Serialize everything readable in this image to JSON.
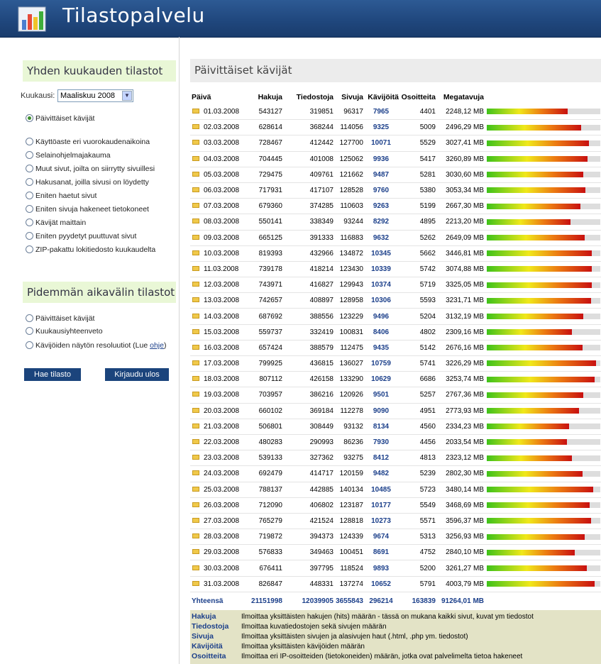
{
  "app": {
    "title": "Tilastopalvelu"
  },
  "sidebar": {
    "monthly_title": "Yhden kuukauden tilastot",
    "month_label": "Kuukausi:",
    "month_value": "Maaliskuu 2008",
    "monthly_options": [
      "Päivittäiset kävijät",
      "Käyttöaste eri vuorokaudenaikoina",
      "Selainohjelmajakauma",
      "Muut sivut, joilta on siirrytty sivuillesi",
      "Hakusanat, joilla sivusi on löydetty",
      "Eniten haetut sivut",
      "Eniten sivuja hakeneet tietokoneet",
      "Kävijät maittain",
      "Eniten pyydetyt puuttuvat sivut",
      "ZIP-pakattu lokitiedosto kuukaudelta"
    ],
    "longterm_title": "Pidemmän aikavälin tilastot",
    "longterm_options": [
      "Päivittäiset kävijät",
      "Kuukausiyhteenveto",
      "Kävijöiden näytön resoluutiot (Lue "
    ],
    "help_link": "ohje",
    "help_close": ")",
    "fetch_button": "Hae tilasto",
    "logout_button": "Kirjaudu ulos"
  },
  "main": {
    "title": "Päivittäiset kävijät",
    "columns": [
      "Päivä",
      "Hakuja",
      "Tiedostoja",
      "Sivuja",
      "Kävijöitä",
      "Osoitteita",
      "Megatavuja"
    ],
    "rows": [
      [
        "01.03.2008",
        "543127",
        "319851",
        "96317",
        "7965",
        "4401",
        "2248,12 MB"
      ],
      [
        "02.03.2008",
        "628614",
        "368244",
        "114056",
        "9325",
        "5009",
        "2496,29 MB"
      ],
      [
        "03.03.2008",
        "728467",
        "412442",
        "127700",
        "10071",
        "5529",
        "3027,41 MB"
      ],
      [
        "04.03.2008",
        "704445",
        "401008",
        "125062",
        "9936",
        "5417",
        "3260,89 MB"
      ],
      [
        "05.03.2008",
        "729475",
        "409761",
        "121662",
        "9487",
        "5281",
        "3030,60 MB"
      ],
      [
        "06.03.2008",
        "717931",
        "417107",
        "128528",
        "9760",
        "5380",
        "3053,34 MB"
      ],
      [
        "07.03.2008",
        "679360",
        "374285",
        "110603",
        "9263",
        "5199",
        "2667,30 MB"
      ],
      [
        "08.03.2008",
        "550141",
        "338349",
        "93244",
        "8292",
        "4895",
        "2213,20 MB"
      ],
      [
        "09.03.2008",
        "665125",
        "391333",
        "116883",
        "9632",
        "5262",
        "2649,09 MB"
      ],
      [
        "10.03.2008",
        "819393",
        "432966",
        "134872",
        "10345",
        "5662",
        "3446,81 MB"
      ],
      [
        "11.03.2008",
        "739178",
        "418214",
        "123430",
        "10339",
        "5742",
        "3074,88 MB"
      ],
      [
        "12.03.2008",
        "743971",
        "416827",
        "129943",
        "10374",
        "5719",
        "3325,05 MB"
      ],
      [
        "13.03.2008",
        "742657",
        "408897",
        "128958",
        "10306",
        "5593",
        "3231,71 MB"
      ],
      [
        "14.03.2008",
        "687692",
        "388556",
        "123229",
        "9496",
        "5204",
        "3132,19 MB"
      ],
      [
        "15.03.2008",
        "559737",
        "332419",
        "100831",
        "8406",
        "4802",
        "2309,16 MB"
      ],
      [
        "16.03.2008",
        "657424",
        "388579",
        "112475",
        "9435",
        "5142",
        "2676,16 MB"
      ],
      [
        "17.03.2008",
        "799925",
        "436815",
        "136027",
        "10759",
        "5741",
        "3226,29 MB"
      ],
      [
        "18.03.2008",
        "807112",
        "426158",
        "133290",
        "10629",
        "6686",
        "3253,74 MB"
      ],
      [
        "19.03.2008",
        "703957",
        "386216",
        "120926",
        "9501",
        "5257",
        "2767,36 MB"
      ],
      [
        "20.03.2008",
        "660102",
        "369184",
        "112278",
        "9090",
        "4951",
        "2773,93 MB"
      ],
      [
        "21.03.2008",
        "506801",
        "308449",
        "93132",
        "8134",
        "4560",
        "2334,23 MB"
      ],
      [
        "22.03.2008",
        "480283",
        "290993",
        "86236",
        "7930",
        "4456",
        "2033,54 MB"
      ],
      [
        "23.03.2008",
        "539133",
        "327362",
        "93275",
        "8412",
        "4813",
        "2323,12 MB"
      ],
      [
        "24.03.2008",
        "692479",
        "414717",
        "120159",
        "9482",
        "5239",
        "2802,30 MB"
      ],
      [
        "25.03.2008",
        "788137",
        "442885",
        "140134",
        "10485",
        "5723",
        "3480,14 MB"
      ],
      [
        "26.03.2008",
        "712090",
        "406802",
        "123187",
        "10177",
        "5549",
        "3468,69 MB"
      ],
      [
        "27.03.2008",
        "765279",
        "421524",
        "128818",
        "10273",
        "5571",
        "3596,37 MB"
      ],
      [
        "28.03.2008",
        "719872",
        "394373",
        "124339",
        "9674",
        "5313",
        "3256,93 MB"
      ],
      [
        "29.03.2008",
        "576833",
        "349463",
        "100451",
        "8691",
        "4752",
        "2840,10 MB"
      ],
      [
        "30.03.2008",
        "676411",
        "397795",
        "118524",
        "9893",
        "5200",
        "3261,27 MB"
      ],
      [
        "31.03.2008",
        "826847",
        "448331",
        "137274",
        "10652",
        "5791",
        "4003,79 MB"
      ]
    ],
    "bar_max_visitors": 11200,
    "totals": {
      "label": "Yhteensä",
      "hits": "21151998",
      "files": "12039905",
      "pages": "3655843",
      "visitors": "296214",
      "addresses": "163839",
      "megabytes": "91264,01 MB"
    }
  },
  "legend": [
    {
      "term": "Hakuja",
      "desc": "Ilmoittaa yksittäisten hakujen (hits) määrän - tässä on mukana kaikki sivut, kuvat ym tiedostot"
    },
    {
      "term": "Tiedostoja",
      "desc": "Ilmoittaa kuvatiedostojen sekä sivujen määrän"
    },
    {
      "term": "Sivuja",
      "desc": "Ilmoittaa yksittäisten sivujen ja alasivujen haut (.html, .php ym. tiedostot)"
    },
    {
      "term": "Kävijöitä",
      "desc": "Ilmoittaa yksittäisten kävijöiden määrän"
    },
    {
      "term": "Osoitteita",
      "desc": "Ilmoittaa eri IP-osoitteiden (tietokoneiden) määrän, jotka ovat palvelimelta tietoa hakeneet"
    }
  ]
}
